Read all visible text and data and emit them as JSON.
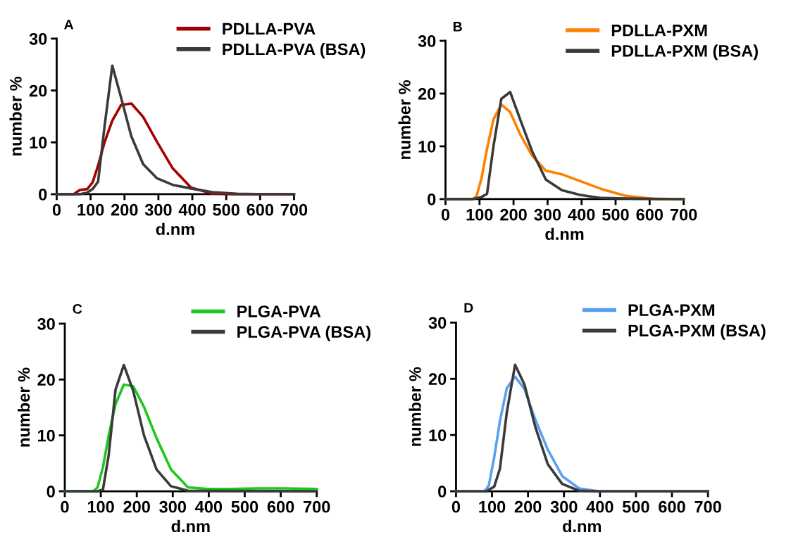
{
  "chart_data": [
    {
      "type": "line",
      "title": "A",
      "xlabel": "d.nm",
      "ylabel": "number %",
      "xlim": [
        0,
        700
      ],
      "ylim": [
        0,
        30
      ],
      "xticks": [
        0,
        100,
        200,
        300,
        400,
        500,
        600,
        700
      ],
      "yticks": [
        0,
        10,
        20,
        30
      ],
      "legend": "top right",
      "grid": false,
      "marker": "none",
      "line_style": "solid",
      "series": [
        {
          "name": "PDLLA-PVA",
          "color": "#a50000",
          "x": [
            0,
            50,
            68,
            90,
            106,
            122,
            141,
            164,
            190,
            220,
            255,
            295,
            342,
            396,
            459,
            531,
            700
          ],
          "values": [
            0,
            0,
            0.8,
            1.0,
            2.3,
            5.5,
            10,
            14.2,
            17.2,
            17.5,
            14.9,
            10.2,
            5.0,
            1.3,
            0.1,
            0,
            0
          ]
        },
        {
          "name": "PDLLA-PVA (BSA)",
          "color": "#3a3a3a",
          "x": [
            0,
            68,
            90,
            106,
            122,
            141,
            164,
            190,
            220,
            255,
            295,
            342,
            396,
            459,
            531,
            615,
            700
          ],
          "values": [
            0,
            0,
            0.3,
            1.0,
            2.4,
            13,
            24.8,
            18.6,
            11.2,
            5.8,
            3.1,
            1.8,
            1.1,
            0.4,
            0.1,
            0,
            0
          ]
        }
      ]
    },
    {
      "type": "line",
      "title": "B",
      "xlabel": "d.nm",
      "ylabel": "number %",
      "xlim": [
        0,
        700
      ],
      "ylim": [
        0,
        30
      ],
      "xticks": [
        0,
        100,
        200,
        300,
        400,
        500,
        600,
        700
      ],
      "yticks": [
        0,
        10,
        20,
        30
      ],
      "legend": "top right",
      "grid": false,
      "marker": "none",
      "line_style": "solid",
      "series": [
        {
          "name": "PDLLA-PXM",
          "color": "#ff8000",
          "x": [
            0,
            79,
            91,
            106,
            122,
            141,
            164,
            190,
            220,
            255,
            295,
            342,
            396,
            459,
            531,
            615,
            700
          ],
          "values": [
            0,
            0,
            0.5,
            4.0,
            9.5,
            15.1,
            17.9,
            16.5,
            12.2,
            8.2,
            5.4,
            4.7,
            3.4,
            1.9,
            0.6,
            0,
            0
          ]
        },
        {
          "name": "PDLLA-PXM (BSA)",
          "color": "#3a3a3a",
          "x": [
            0,
            79,
            106,
            122,
            141,
            164,
            190,
            220,
            255,
            295,
            342,
            396,
            459,
            531,
            700
          ],
          "values": [
            0,
            0,
            0.4,
            1.0,
            10,
            19.0,
            20.3,
            15,
            9.0,
            3.7,
            1.7,
            0.8,
            0.2,
            0.1,
            0
          ]
        }
      ]
    },
    {
      "type": "line",
      "title": "C",
      "xlabel": "d.nm",
      "ylabel": "number %",
      "xlim": [
        0,
        700
      ],
      "ylim": [
        0,
        30
      ],
      "xticks": [
        0,
        100,
        200,
        300,
        400,
        500,
        600,
        700
      ],
      "yticks": [
        0,
        10,
        20,
        30
      ],
      "legend": "top right",
      "grid": false,
      "marker": "none",
      "line_style": "solid",
      "series": [
        {
          "name": "PLGA-PVA",
          "color": "#1ec81e",
          "x": [
            0,
            79,
            91,
            106,
            122,
            141,
            164,
            190,
            220,
            255,
            295,
            342,
            396,
            459,
            531,
            615,
            700
          ],
          "values": [
            0,
            0,
            0.7,
            4.3,
            10,
            15.6,
            19.1,
            18.8,
            15.1,
            9.5,
            3.9,
            0.7,
            0.4,
            0.4,
            0.5,
            0.5,
            0.4
          ]
        },
        {
          "name": "PLGA-PVA (BSA)",
          "color": "#3a3a3a",
          "x": [
            0,
            91,
            106,
            122,
            141,
            164,
            190,
            220,
            255,
            295,
            342,
            700
          ],
          "values": [
            0,
            0,
            0.3,
            6.5,
            18.2,
            22.6,
            18.0,
            10.0,
            3.9,
            0.9,
            0.1,
            0
          ]
        }
      ]
    },
    {
      "type": "line",
      "title": "D",
      "xlabel": "d.nm",
      "ylabel": "number %",
      "xlim": [
        0,
        700
      ],
      "ylim": [
        0,
        30
      ],
      "xticks": [
        0,
        100,
        200,
        300,
        400,
        500,
        600,
        700
      ],
      "yticks": [
        0,
        10,
        20,
        30
      ],
      "legend": "top right",
      "grid": false,
      "marker": "none",
      "line_style": "solid",
      "series": [
        {
          "name": "PLGA-PXM",
          "color": "#5aa0f0",
          "x": [
            0,
            79,
            91,
            106,
            122,
            141,
            164,
            190,
            220,
            255,
            295,
            342,
            396,
            700
          ],
          "values": [
            0,
            0,
            1.0,
            6,
            12.5,
            18.3,
            20.4,
            18.2,
            12.8,
            7.4,
            2.7,
            0.5,
            0,
            0
          ]
        },
        {
          "name": "PLGA-PXM (BSA)",
          "color": "#3a3a3a",
          "x": [
            0,
            84,
            106,
            122,
            141,
            164,
            190,
            220,
            255,
            295,
            342,
            396,
            700
          ],
          "values": [
            0,
            0,
            0.8,
            4.0,
            14.0,
            22.5,
            19.0,
            11.5,
            4.8,
            1.3,
            0.1,
            0,
            0
          ]
        }
      ]
    }
  ]
}
